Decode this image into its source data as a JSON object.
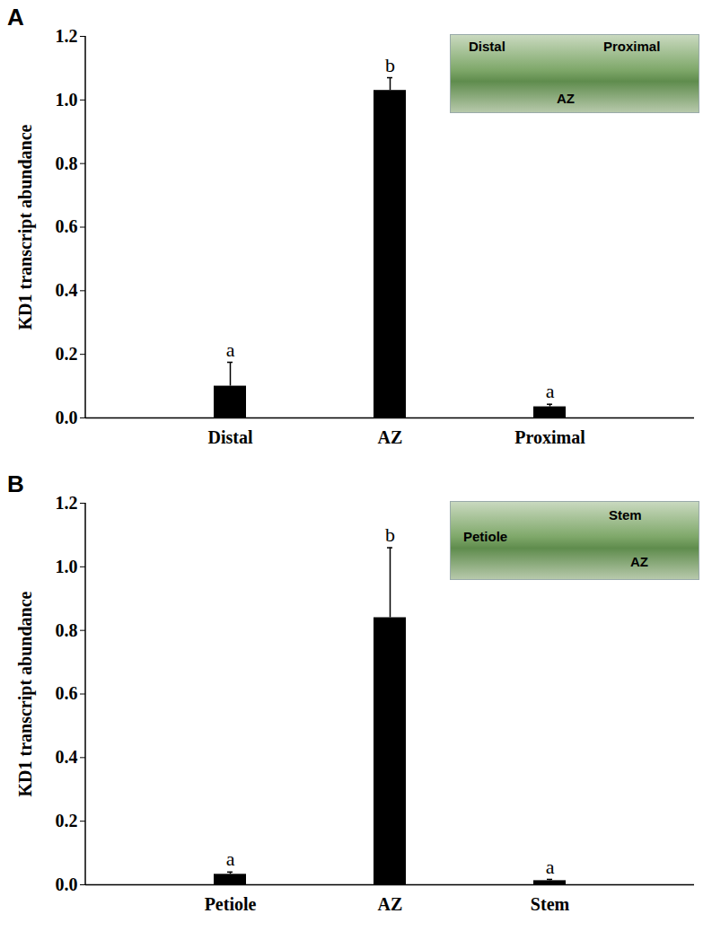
{
  "chart_data": [
    {
      "type": "bar",
      "title": "A",
      "ylabel": "KD1 transcript abundance",
      "categories": [
        "Distal",
        "AZ",
        "Proximal"
      ],
      "values": [
        0.1,
        1.03,
        0.035
      ],
      "errors": [
        0.075,
        0.04,
        0.008
      ],
      "significance": [
        "a",
        "b",
        "a"
      ],
      "annotations": [
        "Distal",
        "Proximal",
        "AZ"
      ],
      "color": "#000000",
      "ylim": [
        0,
        1.2
      ],
      "yticks": [
        {
          "value": 0,
          "label": "0.0"
        },
        0.2,
        0.4,
        0.6,
        0.8,
        {
          "value": 1,
          "label": "1.0"
        },
        1.2
      ]
    },
    {
      "type": "bar",
      "title": "B",
      "ylabel": "KD1 transcript abundance",
      "categories": [
        "Petiole",
        "AZ",
        "Stem"
      ],
      "values": [
        0.033,
        0.84,
        0.013
      ],
      "errors": [
        0.007,
        0.22,
        0.004
      ],
      "significance": [
        "a",
        "b",
        "a"
      ],
      "annotations": [
        "Stem",
        "Petiole",
        "AZ"
      ],
      "color": "#000000",
      "ylim": [
        0,
        1.2
      ],
      "yticks": [
        {
          "value": 0,
          "label": "0.0"
        },
        0.2,
        0.4,
        0.6,
        0.8,
        {
          "value": 1,
          "label": "1.0"
        },
        1.2
      ]
    }
  ]
}
